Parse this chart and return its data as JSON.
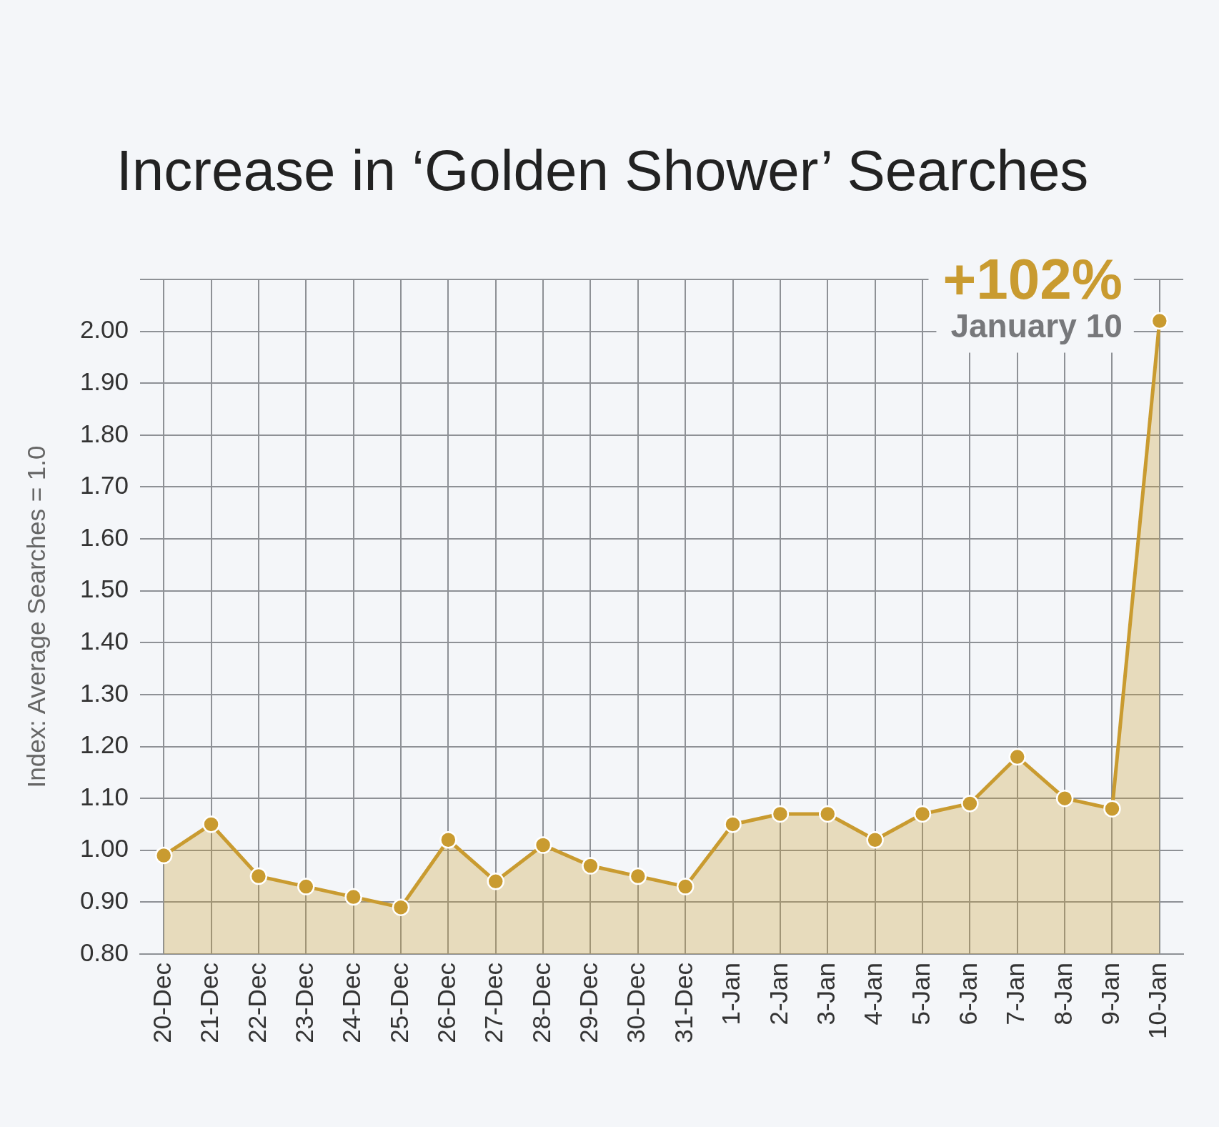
{
  "chart_data": {
    "type": "area",
    "title": "Increase in ‘Golden Shower’ Searches",
    "ylabel": "Index: Average Searches = 1.0",
    "categories": [
      "20-Dec",
      "21-Dec",
      "22-Dec",
      "23-Dec",
      "24-Dec",
      "25-Dec",
      "26-Dec",
      "27-Dec",
      "28-Dec",
      "29-Dec",
      "30-Dec",
      "31-Dec",
      "1-Jan",
      "2-Jan",
      "3-Jan",
      "4-Jan",
      "5-Jan",
      "6-Jan",
      "7-Jan",
      "8-Jan",
      "9-Jan",
      "10-Jan"
    ],
    "series": [
      {
        "color": "#c99b30",
        "values": [
          0.99,
          1.05,
          0.95,
          0.93,
          0.91,
          0.89,
          1.02,
          0.94,
          1.01,
          0.97,
          0.95,
          0.93,
          1.05,
          1.07,
          1.07,
          1.02,
          1.07,
          1.09,
          1.18,
          1.1,
          1.08,
          2.02
        ]
      }
    ],
    "ylim": [
      0.8,
      2.1
    ],
    "yticks": [
      {
        "value": 0.8,
        "label": "0.80"
      },
      {
        "value": 0.9,
        "label": "0.90"
      },
      {
        "value": 1.0,
        "label": "1.00"
      },
      {
        "value": 1.1,
        "label": "1.10"
      },
      {
        "value": 1.2,
        "label": "1.20"
      },
      {
        "value": 1.3,
        "label": "1.30"
      },
      {
        "value": 1.4,
        "label": "1.40"
      },
      {
        "value": 1.5,
        "label": "1.50"
      },
      {
        "value": 1.6,
        "label": "1.60"
      },
      {
        "value": 1.7,
        "label": "1.70"
      },
      {
        "value": 1.8,
        "label": "1.80"
      },
      {
        "value": 1.9,
        "label": "1.90"
      },
      {
        "value": 2.0,
        "label": "2.00"
      },
      {
        "value": 2.1,
        "label": null
      }
    ],
    "grid": true,
    "marker": "circle",
    "annotations": [
      {
        "text": "+102%",
        "x": "10-Jan",
        "y": 2.02
      },
      {
        "text": "January 10",
        "x": "10-Jan",
        "y": 2.02
      }
    ]
  }
}
